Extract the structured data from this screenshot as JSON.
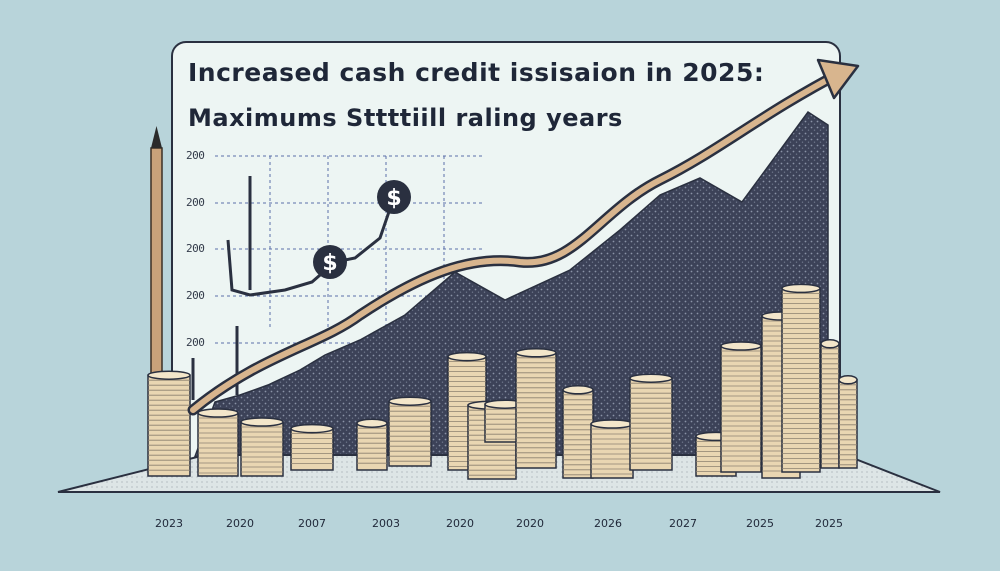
{
  "chart_data": {
    "type": "bar",
    "title": "Increased cash credit issisaion in 2025:",
    "subtitle": "Maximums Sttttiill raling years",
    "xlabel": "",
    "ylabel": "",
    "y_tick_labels": [
      "200",
      "200",
      "200",
      "200",
      "200"
    ],
    "x_tick_labels": [
      "2023",
      "2020",
      "2007",
      "2003",
      "2020",
      "2020",
      "2026",
      "2027",
      "2025",
      "2025"
    ],
    "annotation_symbols": [
      "$",
      "$"
    ],
    "series": [
      {
        "values": [
          5.6,
          3.5,
          3.0,
          2.3,
          2.6,
          3.6,
          6.3,
          4.1,
          2.1,
          6.4,
          4.9,
          3.0,
          5.1,
          2.2,
          7.0,
          9.0,
          10.2,
          6.9,
          4.9
        ]
      }
    ],
    "grid": true,
    "legend": "none",
    "colors": {
      "background": "#b8d4da",
      "panel": "#edf5f3",
      "coin_fill": "#e9d6b2",
      "coin_edge": "#2a3040",
      "mountain": "#3c4258",
      "trend_arrow": "#d8b58e",
      "text": "#1f2738"
    }
  }
}
